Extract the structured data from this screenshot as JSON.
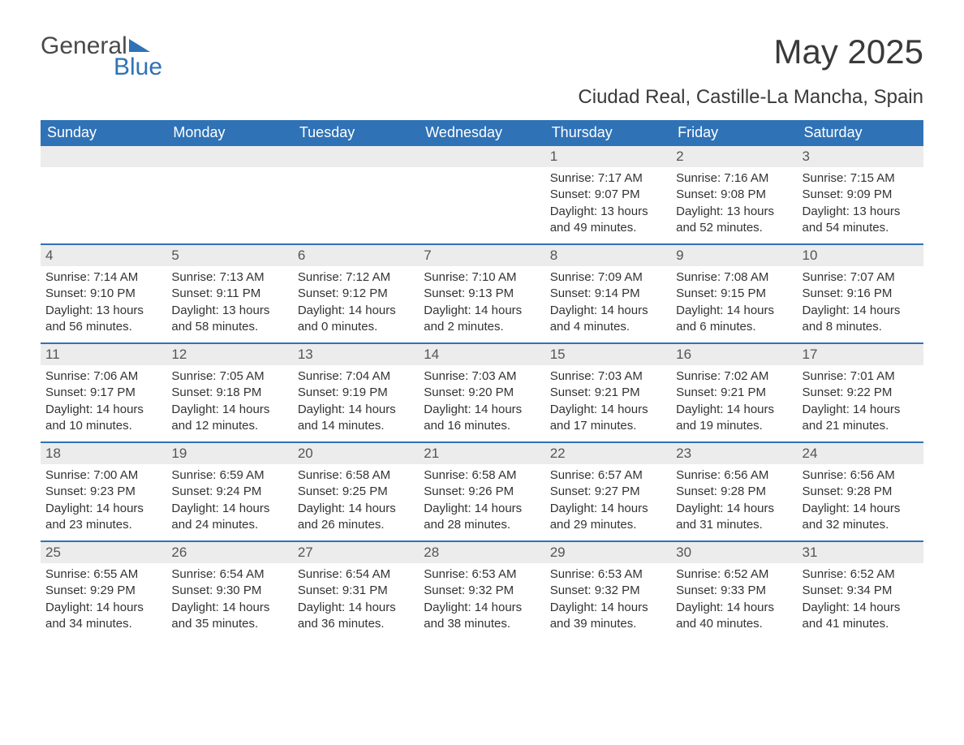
{
  "colors": {
    "brand_blue": "#2f72b6",
    "header_row_bg": "#2f72b6",
    "header_row_text": "#ffffff",
    "daynum_bg": "#ececec",
    "body_text": "#333333",
    "page_bg": "#ffffff"
  },
  "typography": {
    "title_fontsize": 42,
    "subtitle_fontsize": 24,
    "dayhdr_fontsize": 18,
    "cell_fontsize": 15
  },
  "logo": {
    "word1": "General",
    "word2": "Blue"
  },
  "title": "May 2025",
  "subtitle": "Ciudad Real, Castille-La Mancha, Spain",
  "day_headers": [
    "Sunday",
    "Monday",
    "Tuesday",
    "Wednesday",
    "Thursday",
    "Friday",
    "Saturday"
  ],
  "weeks": [
    [
      {
        "empty": true
      },
      {
        "empty": true
      },
      {
        "empty": true
      },
      {
        "empty": true
      },
      {
        "n": "1",
        "sunrise": "Sunrise: 7:17 AM",
        "sunset": "Sunset: 9:07 PM",
        "dl1": "Daylight: 13 hours",
        "dl2": "and 49 minutes."
      },
      {
        "n": "2",
        "sunrise": "Sunrise: 7:16 AM",
        "sunset": "Sunset: 9:08 PM",
        "dl1": "Daylight: 13 hours",
        "dl2": "and 52 minutes."
      },
      {
        "n": "3",
        "sunrise": "Sunrise: 7:15 AM",
        "sunset": "Sunset: 9:09 PM",
        "dl1": "Daylight: 13 hours",
        "dl2": "and 54 minutes."
      }
    ],
    [
      {
        "n": "4",
        "sunrise": "Sunrise: 7:14 AM",
        "sunset": "Sunset: 9:10 PM",
        "dl1": "Daylight: 13 hours",
        "dl2": "and 56 minutes."
      },
      {
        "n": "5",
        "sunrise": "Sunrise: 7:13 AM",
        "sunset": "Sunset: 9:11 PM",
        "dl1": "Daylight: 13 hours",
        "dl2": "and 58 minutes."
      },
      {
        "n": "6",
        "sunrise": "Sunrise: 7:12 AM",
        "sunset": "Sunset: 9:12 PM",
        "dl1": "Daylight: 14 hours",
        "dl2": "and 0 minutes."
      },
      {
        "n": "7",
        "sunrise": "Sunrise: 7:10 AM",
        "sunset": "Sunset: 9:13 PM",
        "dl1": "Daylight: 14 hours",
        "dl2": "and 2 minutes."
      },
      {
        "n": "8",
        "sunrise": "Sunrise: 7:09 AM",
        "sunset": "Sunset: 9:14 PM",
        "dl1": "Daylight: 14 hours",
        "dl2": "and 4 minutes."
      },
      {
        "n": "9",
        "sunrise": "Sunrise: 7:08 AM",
        "sunset": "Sunset: 9:15 PM",
        "dl1": "Daylight: 14 hours",
        "dl2": "and 6 minutes."
      },
      {
        "n": "10",
        "sunrise": "Sunrise: 7:07 AM",
        "sunset": "Sunset: 9:16 PM",
        "dl1": "Daylight: 14 hours",
        "dl2": "and 8 minutes."
      }
    ],
    [
      {
        "n": "11",
        "sunrise": "Sunrise: 7:06 AM",
        "sunset": "Sunset: 9:17 PM",
        "dl1": "Daylight: 14 hours",
        "dl2": "and 10 minutes."
      },
      {
        "n": "12",
        "sunrise": "Sunrise: 7:05 AM",
        "sunset": "Sunset: 9:18 PM",
        "dl1": "Daylight: 14 hours",
        "dl2": "and 12 minutes."
      },
      {
        "n": "13",
        "sunrise": "Sunrise: 7:04 AM",
        "sunset": "Sunset: 9:19 PM",
        "dl1": "Daylight: 14 hours",
        "dl2": "and 14 minutes."
      },
      {
        "n": "14",
        "sunrise": "Sunrise: 7:03 AM",
        "sunset": "Sunset: 9:20 PM",
        "dl1": "Daylight: 14 hours",
        "dl2": "and 16 minutes."
      },
      {
        "n": "15",
        "sunrise": "Sunrise: 7:03 AM",
        "sunset": "Sunset: 9:21 PM",
        "dl1": "Daylight: 14 hours",
        "dl2": "and 17 minutes."
      },
      {
        "n": "16",
        "sunrise": "Sunrise: 7:02 AM",
        "sunset": "Sunset: 9:21 PM",
        "dl1": "Daylight: 14 hours",
        "dl2": "and 19 minutes."
      },
      {
        "n": "17",
        "sunrise": "Sunrise: 7:01 AM",
        "sunset": "Sunset: 9:22 PM",
        "dl1": "Daylight: 14 hours",
        "dl2": "and 21 minutes."
      }
    ],
    [
      {
        "n": "18",
        "sunrise": "Sunrise: 7:00 AM",
        "sunset": "Sunset: 9:23 PM",
        "dl1": "Daylight: 14 hours",
        "dl2": "and 23 minutes."
      },
      {
        "n": "19",
        "sunrise": "Sunrise: 6:59 AM",
        "sunset": "Sunset: 9:24 PM",
        "dl1": "Daylight: 14 hours",
        "dl2": "and 24 minutes."
      },
      {
        "n": "20",
        "sunrise": "Sunrise: 6:58 AM",
        "sunset": "Sunset: 9:25 PM",
        "dl1": "Daylight: 14 hours",
        "dl2": "and 26 minutes."
      },
      {
        "n": "21",
        "sunrise": "Sunrise: 6:58 AM",
        "sunset": "Sunset: 9:26 PM",
        "dl1": "Daylight: 14 hours",
        "dl2": "and 28 minutes."
      },
      {
        "n": "22",
        "sunrise": "Sunrise: 6:57 AM",
        "sunset": "Sunset: 9:27 PM",
        "dl1": "Daylight: 14 hours",
        "dl2": "and 29 minutes."
      },
      {
        "n": "23",
        "sunrise": "Sunrise: 6:56 AM",
        "sunset": "Sunset: 9:28 PM",
        "dl1": "Daylight: 14 hours",
        "dl2": "and 31 minutes."
      },
      {
        "n": "24",
        "sunrise": "Sunrise: 6:56 AM",
        "sunset": "Sunset: 9:28 PM",
        "dl1": "Daylight: 14 hours",
        "dl2": "and 32 minutes."
      }
    ],
    [
      {
        "n": "25",
        "sunrise": "Sunrise: 6:55 AM",
        "sunset": "Sunset: 9:29 PM",
        "dl1": "Daylight: 14 hours",
        "dl2": "and 34 minutes."
      },
      {
        "n": "26",
        "sunrise": "Sunrise: 6:54 AM",
        "sunset": "Sunset: 9:30 PM",
        "dl1": "Daylight: 14 hours",
        "dl2": "and 35 minutes."
      },
      {
        "n": "27",
        "sunrise": "Sunrise: 6:54 AM",
        "sunset": "Sunset: 9:31 PM",
        "dl1": "Daylight: 14 hours",
        "dl2": "and 36 minutes."
      },
      {
        "n": "28",
        "sunrise": "Sunrise: 6:53 AM",
        "sunset": "Sunset: 9:32 PM",
        "dl1": "Daylight: 14 hours",
        "dl2": "and 38 minutes."
      },
      {
        "n": "29",
        "sunrise": "Sunrise: 6:53 AM",
        "sunset": "Sunset: 9:32 PM",
        "dl1": "Daylight: 14 hours",
        "dl2": "and 39 minutes."
      },
      {
        "n": "30",
        "sunrise": "Sunrise: 6:52 AM",
        "sunset": "Sunset: 9:33 PM",
        "dl1": "Daylight: 14 hours",
        "dl2": "and 40 minutes."
      },
      {
        "n": "31",
        "sunrise": "Sunrise: 6:52 AM",
        "sunset": "Sunset: 9:34 PM",
        "dl1": "Daylight: 14 hours",
        "dl2": "and 41 minutes."
      }
    ]
  ]
}
